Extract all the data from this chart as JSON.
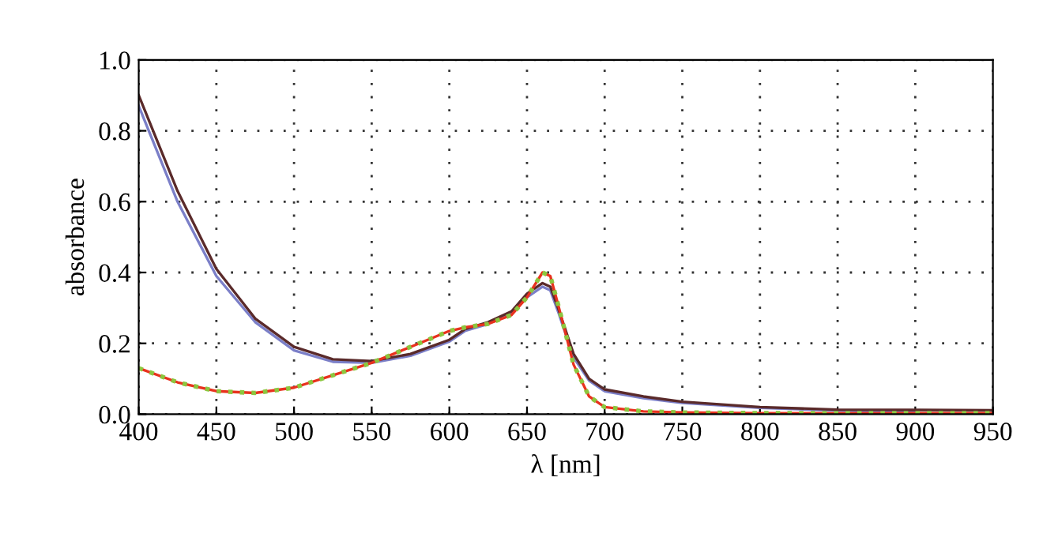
{
  "chart_data": {
    "type": "line",
    "xlabel": "λ [nm]",
    "ylabel": "absorbance",
    "x": [
      400,
      425,
      450,
      475,
      500,
      525,
      550,
      575,
      600,
      610,
      625,
      640,
      650,
      660,
      665,
      670,
      680,
      690,
      700,
      725,
      750,
      800,
      850,
      900,
      950
    ],
    "xlim": [
      400,
      950
    ],
    "xticks": [
      400,
      450,
      500,
      550,
      600,
      650,
      700,
      750,
      800,
      850,
      900,
      950
    ],
    "ylim": [
      0,
      1.0
    ],
    "yticks": [
      {
        "value": 0,
        "label": "0.0"
      },
      0.2,
      0.4,
      0.6,
      0.8,
      {
        "value": 1.0,
        "label": "1.0"
      }
    ],
    "grid": true,
    "marker": "none",
    "series": [
      {
        "color": "#7b7fc8",
        "line_style": "solid",
        "values": [
          0.87,
          0.6,
          0.39,
          0.26,
          0.18,
          0.148,
          0.145,
          0.165,
          0.205,
          0.235,
          0.255,
          0.285,
          0.33,
          0.36,
          0.35,
          0.29,
          0.16,
          0.095,
          0.065,
          0.045,
          0.032,
          0.018,
          0.01,
          0.006,
          null
        ]
      },
      {
        "color": "#5a2a2a",
        "line_style": "solid",
        "values": [
          0.9,
          0.63,
          0.41,
          0.27,
          0.19,
          0.155,
          0.15,
          0.17,
          0.21,
          0.24,
          0.26,
          0.29,
          0.34,
          0.37,
          0.36,
          0.3,
          0.17,
          0.1,
          0.07,
          0.05,
          0.035,
          0.02,
          0.013,
          0.012,
          0.011
        ]
      },
      {
        "color": "#e8321e",
        "line_style": "solid",
        "values": [
          0.13,
          0.09,
          0.065,
          0.06,
          0.075,
          0.11,
          0.145,
          0.19,
          0.235,
          0.245,
          0.255,
          0.28,
          0.33,
          0.4,
          0.39,
          0.31,
          0.14,
          0.05,
          0.02,
          0.008,
          0.005,
          0.003,
          0.003,
          0.003,
          0.003
        ]
      },
      {
        "color": "#8cc63f",
        "line_style": "dotted",
        "values": [
          0.13,
          0.09,
          0.065,
          0.06,
          0.075,
          0.11,
          0.145,
          0.19,
          0.235,
          0.245,
          0.255,
          0.28,
          0.33,
          0.4,
          0.39,
          0.31,
          0.14,
          0.05,
          0.02,
          0.008,
          0.005,
          0.003,
          0.003,
          0.003,
          0.003
        ]
      }
    ]
  }
}
